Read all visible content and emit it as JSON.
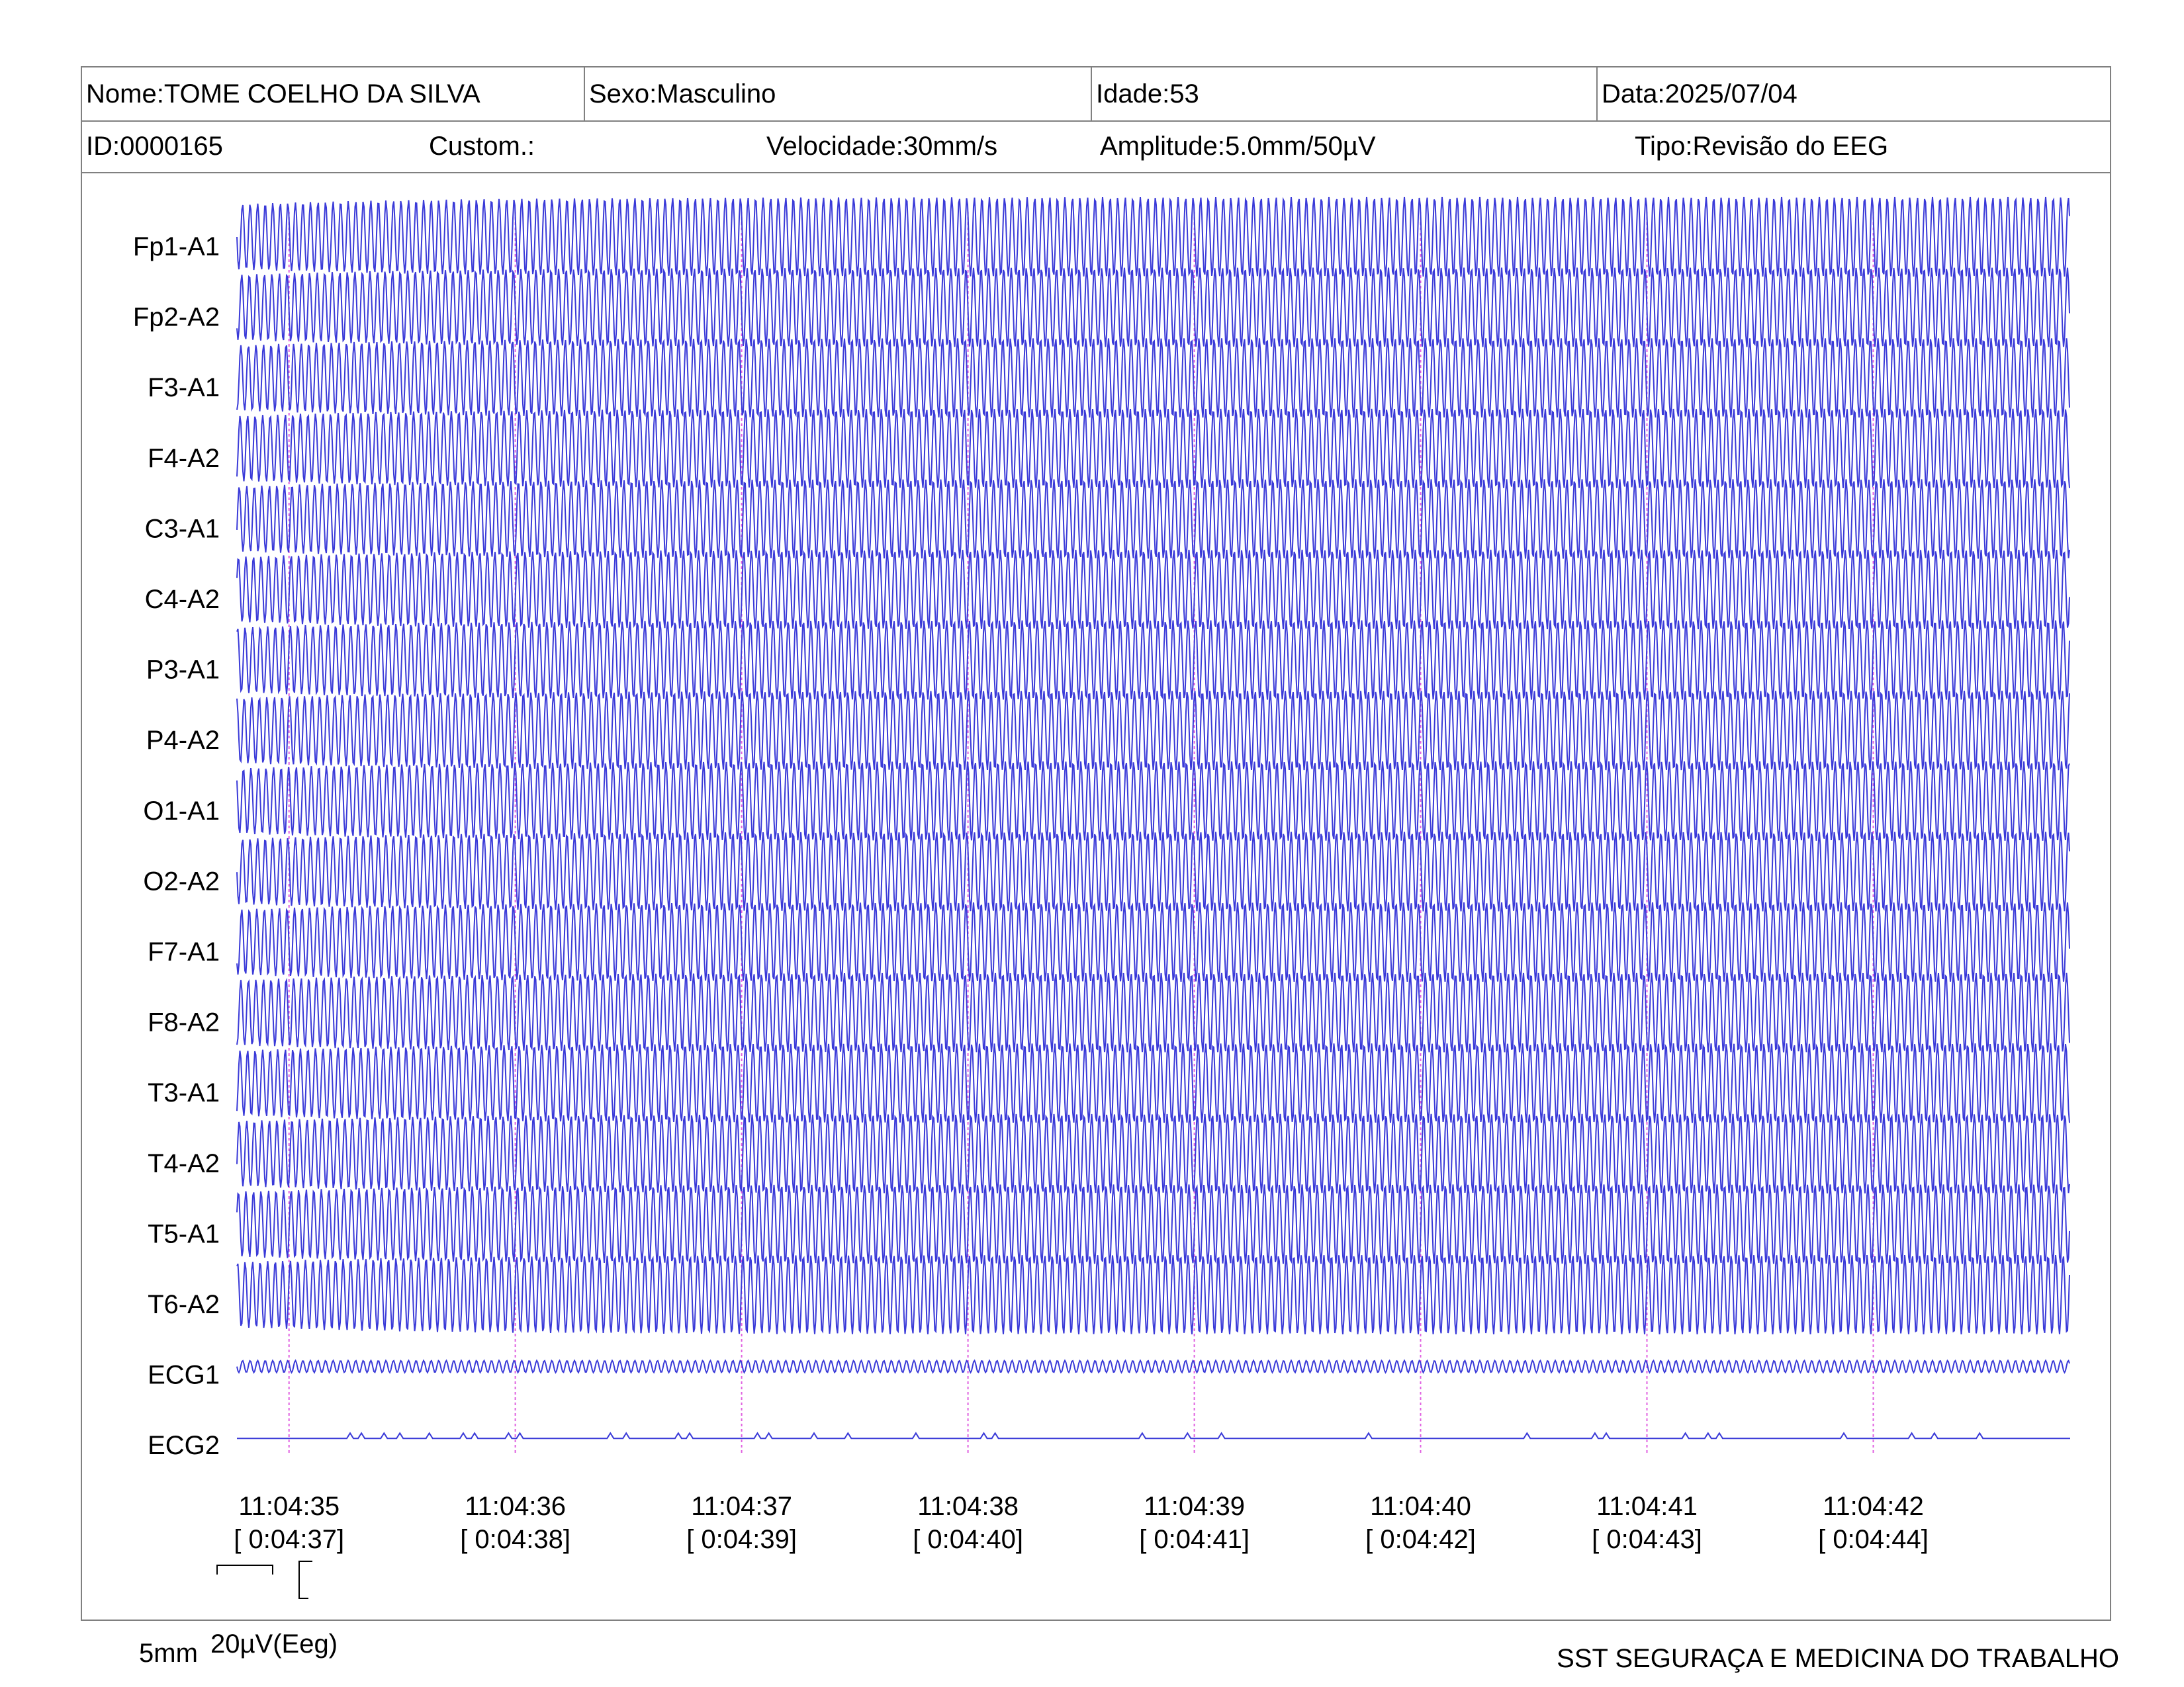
{
  "header": {
    "name": "Nome:TOME COELHO DA SILVA",
    "sex": "Sexo:Masculino",
    "age": "Idade:53",
    "date": "Data:2025/07/04",
    "id": "ID:0000165",
    "custom": "Custom.:",
    "speed": "Velocidade:30mm/s",
    "amplitude": "Amplitude:5.0mm/50µV",
    "type": "Tipo:Revisão do EEG"
  },
  "scale": {
    "time_label": "5mm",
    "amp_label": "20µV(Eeg)"
  },
  "footer": {
    "company": "SST SEGURAÇA E MEDICINA DO TRABALHO"
  },
  "colors": {
    "trace": "#3a3ad8",
    "marker": "#e060e0",
    "border": "#808080"
  },
  "chart_data": {
    "type": "line",
    "channels": [
      "Fp1-A1",
      "Fp2-A2",
      "F3-A1",
      "F4-A2",
      "C3-A1",
      "C4-A2",
      "P3-A1",
      "P4-A2",
      "O1-A1",
      "O2-A2",
      "F7-A1",
      "F8-A2",
      "T3-A1",
      "T4-A2",
      "T5-A1",
      "T6-A2",
      "ECG1",
      "ECG2"
    ],
    "time_marks": [
      {
        "clock": "11:04:35",
        "elapsed": "[ 0:04:37]"
      },
      {
        "clock": "11:04:36",
        "elapsed": "[ 0:04:38]"
      },
      {
        "clock": "11:04:37",
        "elapsed": "[ 0:04:39]"
      },
      {
        "clock": "11:04:38",
        "elapsed": "[ 0:04:40]"
      },
      {
        "clock": "11:04:39",
        "elapsed": "[ 0:04:41]"
      },
      {
        "clock": "11:04:40",
        "elapsed": "[ 0:04:42]"
      },
      {
        "clock": "11:04:41",
        "elapsed": "[ 0:04:43]"
      },
      {
        "clock": "11:04:42",
        "elapsed": "[ 0:04:44]"
      }
    ],
    "seconds_before_first_mark": 0.23,
    "seconds_shown": 8.1,
    "eeg_frequency_hz": 30,
    "ecg1_frequency_hz": 30,
    "eeg_amplitude_uv": 60,
    "ecg1_amplitude_uv": 5,
    "ecg2_spikes_s": [
      0.5,
      0.55,
      0.65,
      0.72,
      0.85,
      1.0,
      1.05,
      1.2,
      1.25,
      1.65,
      1.72,
      1.95,
      2.0,
      2.3,
      2.35,
      2.55,
      2.7,
      3.0,
      3.3,
      3.35,
      4.0,
      4.2,
      4.35,
      5.0,
      5.7,
      6.0,
      6.05,
      6.4,
      6.5,
      6.55,
      7.1,
      7.4,
      7.5,
      7.7
    ]
  }
}
